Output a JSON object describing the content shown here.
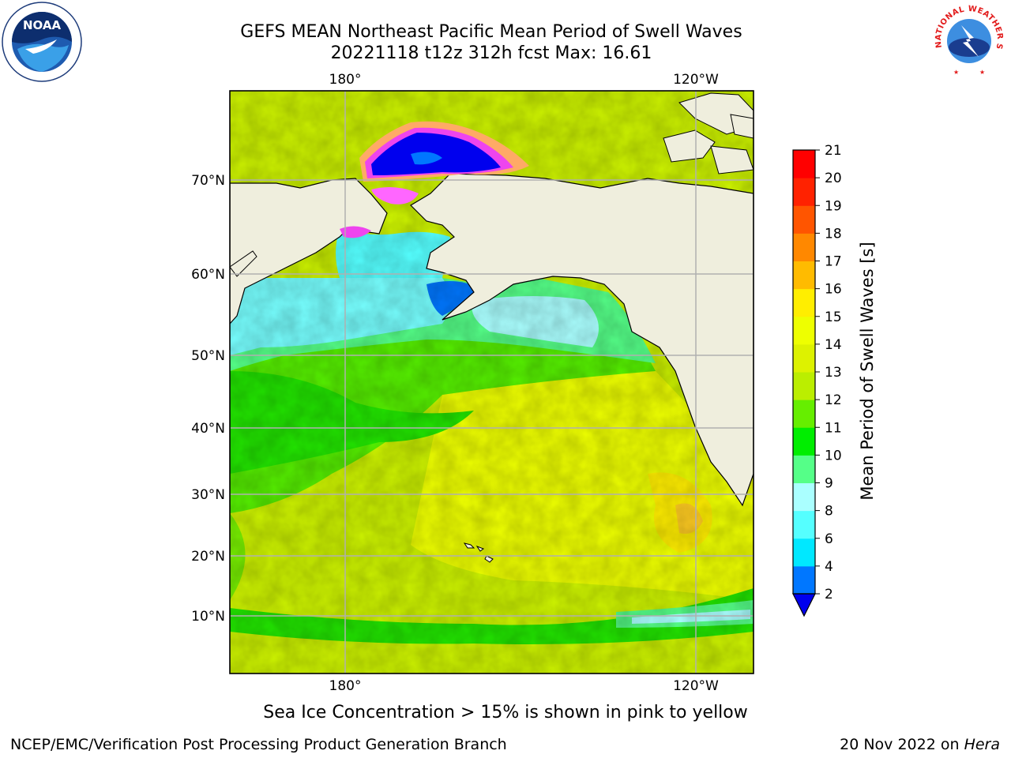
{
  "title": {
    "line1": "GEFS MEAN Northeast Pacific Mean Period of Swell Waves",
    "line2": "20221118 t12z 312h fcst   Max: 16.61"
  },
  "logos": {
    "left": {
      "icon": "noaa-logo",
      "text": "NOAA",
      "ring_text": "NATIONAL OCEANIC AND ATMOSPHERIC ADMINISTRATION · U.S. DEPARTMENT OF COMMERCE"
    },
    "right": {
      "icon": "nws-logo",
      "ring_text": "NATIONAL WEATHER SERVICE"
    }
  },
  "map": {
    "longitude_labels_top": [
      "180°",
      "120°W"
    ],
    "longitude_labels_bottom": [
      "180°",
      "120°W"
    ],
    "latitude_labels": [
      "70°N",
      "60°N",
      "50°N",
      "40°N",
      "30°N",
      "20°N",
      "10°N"
    ],
    "land_color": "#efeedd",
    "gridline_color": "#b0b0b0"
  },
  "colorbar": {
    "title": "Mean Period of Swell Waves [s]",
    "ticks": [
      "2",
      "4",
      "6",
      "8",
      "9",
      "10",
      "11",
      "12",
      "13",
      "14",
      "15",
      "16",
      "17",
      "18",
      "19",
      "20",
      "21"
    ],
    "colors_bottom_to_top": [
      "#0077ff",
      "#00e8ff",
      "#55ffff",
      "#aaffff",
      "#55ff88",
      "#00ee00",
      "#66ee00",
      "#bbee00",
      "#ddf200",
      "#eeff00",
      "#ffee00",
      "#ffbb00",
      "#ff8800",
      "#ff5500",
      "#ff2200",
      "#ff0000"
    ],
    "under_color": "#0000ee"
  },
  "note": "Sea Ice Concentration > 15% is shown in pink to yellow",
  "footer": {
    "left": "NCEP/EMC/Verification Post Processing Product Generation Branch",
    "right_date": "20 Nov 2022 on",
    "right_host": "Hera"
  }
}
